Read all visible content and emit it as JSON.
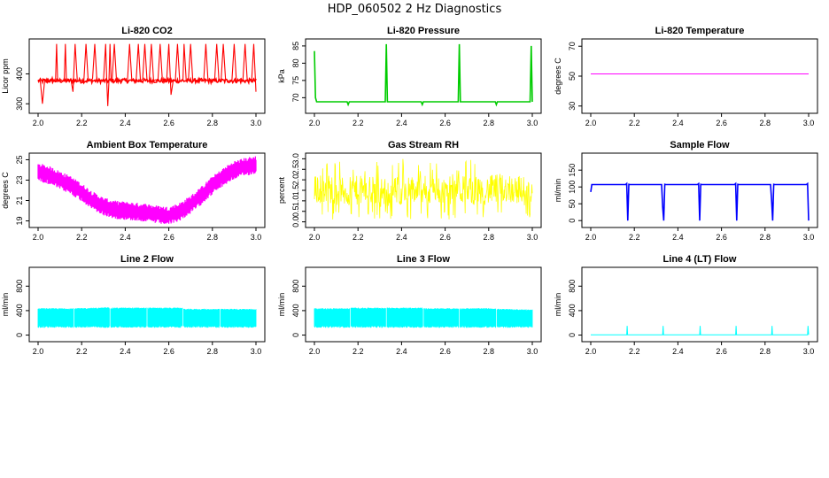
{
  "title": "HDP_060502  2 Hz Diagnostics",
  "chart_data": [
    {
      "type": "line",
      "title": "Li-820 CO2",
      "ylabel": "Licor ppm",
      "color": "#ff0000",
      "xlim": [
        2.0,
        3.0
      ],
      "ylim": [
        280,
        505
      ],
      "xticks": [
        "2.0",
        "2.2",
        "2.4",
        "2.6",
        "2.8",
        "3.0"
      ],
      "yticks": [
        "300",
        "400"
      ],
      "series": [
        {
          "x": [
            2.0,
            2.01,
            2.02,
            2.03,
            2.04,
            2.045,
            2.05,
            2.06,
            2.065,
            2.07,
            2.08,
            2.085,
            2.09,
            2.1,
            2.11,
            2.12,
            2.125,
            2.13,
            2.14,
            2.15,
            2.16,
            2.17,
            2.18,
            2.19,
            2.2,
            2.21,
            2.22,
            2.23,
            2.24,
            2.25,
            2.26,
            2.27,
            2.28,
            2.29,
            2.3,
            2.31,
            2.315,
            2.32,
            2.325,
            2.33,
            2.335,
            2.34,
            2.35,
            2.36,
            2.37,
            2.38,
            2.39,
            2.4,
            2.41,
            2.42,
            2.43,
            2.44,
            2.45,
            2.46,
            2.47,
            2.48,
            2.49,
            2.5,
            2.51,
            2.52,
            2.53,
            2.54,
            2.55,
            2.56,
            2.57,
            2.58,
            2.59,
            2.6,
            2.61,
            2.62,
            2.63,
            2.64,
            2.65,
            2.66,
            2.665,
            2.67,
            2.68,
            2.69,
            2.7,
            2.71,
            2.72,
            2.73,
            2.74,
            2.75,
            2.76,
            2.77,
            2.78,
            2.79,
            2.8,
            2.81,
            2.82,
            2.83,
            2.84,
            2.85,
            2.86,
            2.87,
            2.88,
            2.89,
            2.9,
            2.91,
            2.92,
            2.93,
            2.94,
            2.95,
            2.96,
            2.97,
            2.98,
            2.99,
            3.0
          ],
          "y": [
            380,
            376,
            300,
            378,
            372,
            384,
            378,
            376,
            388,
            374,
            378,
            500,
            374,
            382,
            378,
            376,
            500,
            378,
            376,
            384,
            340,
            500,
            376,
            378,
            380,
            378,
            500,
            376,
            378,
            384,
            500,
            378,
            376,
            380,
            376,
            500,
            378,
            292,
            376,
            500,
            378,
            382,
            500,
            376,
            378,
            380,
            384,
            378,
            376,
            500,
            380,
            376,
            378,
            500,
            376,
            384,
            500,
            378,
            376,
            500,
            378,
            380,
            376,
            500,
            384,
            378,
            376,
            500,
            330,
            376,
            378,
            500,
            376,
            378,
            382,
            500,
            376,
            378,
            500,
            376,
            380,
            378,
            384,
            376,
            378,
            500,
            376,
            378,
            380,
            376,
            500,
            378,
            376,
            500,
            384,
            376,
            378,
            380,
            500,
            376,
            378,
            384,
            376,
            500,
            376,
            378,
            376,
            500,
            340
          ]
        }
      ]
    },
    {
      "type": "line",
      "title": "Li-820 Pressure",
      "ylabel": "kPa",
      "color": "#00cc00",
      "xlim": [
        2.0,
        3.0
      ],
      "ylim": [
        66.5,
        86
      ],
      "xticks": [
        "2.0",
        "2.2",
        "2.4",
        "2.6",
        "2.8",
        "3.0"
      ],
      "yticks": [
        "70",
        "75",
        "80",
        "85"
      ],
      "series": [
        {
          "x": [
            2.0,
            2.005,
            2.01,
            2.05,
            2.1,
            2.15,
            2.155,
            2.16,
            2.2,
            2.25,
            2.3,
            2.325,
            2.33,
            2.335,
            2.4,
            2.45,
            2.49,
            2.495,
            2.5,
            2.55,
            2.6,
            2.66,
            2.665,
            2.67,
            2.7,
            2.75,
            2.8,
            2.83,
            2.835,
            2.84,
            2.9,
            2.95,
            2.99,
            2.995,
            3.0
          ],
          "y": [
            83.5,
            70,
            68.8,
            68.8,
            68.8,
            68.8,
            68.0,
            68.8,
            68.8,
            68.8,
            68.8,
            68.8,
            85.5,
            68.8,
            68.8,
            68.8,
            68.8,
            68.0,
            68.8,
            68.8,
            68.8,
            68.8,
            85.5,
            68.8,
            68.8,
            68.8,
            68.8,
            68.8,
            68.0,
            68.8,
            68.8,
            68.8,
            68.8,
            85.0,
            68.8
          ]
        }
      ]
    },
    {
      "type": "line",
      "title": "Li-820 Temperature",
      "ylabel": "degrees C",
      "color": "#ff00ff",
      "xlim": [
        2.0,
        3.0
      ],
      "ylim": [
        27.5,
        72.5
      ],
      "xticks": [
        "2.0",
        "2.2",
        "2.4",
        "2.6",
        "2.8",
        "3.0"
      ],
      "yticks": [
        "30",
        "50",
        "70"
      ],
      "series": [
        {
          "x": [
            2.0,
            3.0
          ],
          "y": [
            51.5,
            51.5
          ]
        }
      ]
    },
    {
      "type": "line",
      "title": "Ambient Box Temperature",
      "ylabel": "degrees C",
      "color": "#ff00ff",
      "xlim": [
        2.0,
        3.0
      ],
      "ylim": [
        18.7,
        25.3
      ],
      "xticks": [
        "2.0",
        "2.2",
        "2.4",
        "2.6",
        "2.8",
        "3.0"
      ],
      "yticks": [
        "19",
        "21",
        "23",
        "25"
      ],
      "band_width": 0.9,
      "series": [
        {
          "x": [
            2.0,
            2.05,
            2.1,
            2.15,
            2.2,
            2.25,
            2.3,
            2.35,
            2.4,
            2.45,
            2.5,
            2.55,
            2.6,
            2.65,
            2.7,
            2.75,
            2.8,
            2.85,
            2.9,
            2.95,
            3.0
          ],
          "y": [
            23.8,
            23.5,
            23.0,
            22.5,
            21.8,
            21.0,
            20.4,
            20.1,
            20.0,
            19.9,
            19.8,
            19.6,
            19.5,
            19.9,
            20.6,
            21.5,
            22.5,
            23.3,
            24.0,
            24.3,
            24.5
          ]
        }
      ]
    },
    {
      "type": "line",
      "title": "Gas Stream RH",
      "ylabel": "percent",
      "color": "#ffff00",
      "xlim": [
        2.0,
        3.0
      ],
      "ylim": [
        -0.1,
        3.1
      ],
      "xticks": [
        "2.0",
        "2.2",
        "2.4",
        "2.6",
        "2.8",
        "3.0"
      ],
      "yticks": [
        "0.0",
        "0.5",
        "1.0",
        "1.5",
        "2.0",
        "2.5",
        "3.0"
      ],
      "series": [
        {
          "x": [
            2.0,
            2.05,
            2.1,
            2.15,
            2.2,
            2.25,
            2.3,
            2.35,
            2.4,
            2.45,
            2.5,
            2.55,
            2.6,
            2.65,
            2.7,
            2.75,
            2.8,
            2.85,
            2.9,
            2.95,
            3.0
          ],
          "y": [
            1.5,
            1.6,
            1.5,
            1.4,
            1.5,
            1.5,
            1.4,
            1.4,
            1.5,
            1.5,
            1.5,
            1.5,
            1.5,
            1.6,
            1.5,
            1.5,
            1.5,
            1.6,
            1.6,
            1.5,
            1.4
          ]
        }
      ]
    },
    {
      "type": "line",
      "title": "Sample Flow",
      "ylabel": "ml/min",
      "color": "#0000ff",
      "xlim": [
        2.0,
        3.0
      ],
      "ylim": [
        -10,
        190
      ],
      "xticks": [
        "2.0",
        "2.2",
        "2.4",
        "2.6",
        "2.8",
        "3.0"
      ],
      "yticks": [
        "0",
        "50",
        "100",
        "150"
      ],
      "series": [
        {
          "x": [
            2.0,
            2.005,
            2.01,
            2.16,
            2.165,
            2.17,
            2.175,
            2.18,
            2.325,
            2.33,
            2.335,
            2.34,
            2.345,
            2.49,
            2.495,
            2.5,
            2.505,
            2.51,
            2.66,
            2.665,
            2.67,
            2.675,
            2.68,
            2.825,
            2.83,
            2.835,
            2.84,
            2.845,
            2.99,
            2.995,
            3.0
          ],
          "y": [
            85,
            107,
            107,
            107,
            110,
            0,
            108,
            107,
            107,
            40,
            0,
            108,
            107,
            107,
            110,
            0,
            108,
            107,
            107,
            110,
            0,
            108,
            107,
            107,
            60,
            0,
            108,
            107,
            107,
            110,
            0
          ]
        }
      ]
    },
    {
      "type": "line",
      "title": "Line 2 Flow",
      "ylabel": "ml/min",
      "color": "#00ffff",
      "xlim": [
        2.0,
        3.0
      ],
      "ylim": [
        -50,
        1050
      ],
      "xticks": [
        "2.0",
        "2.2",
        "2.4",
        "2.6",
        "2.8",
        "3.0"
      ],
      "yticks": [
        "0",
        "400",
        "800"
      ],
      "band_low": [
        140,
        140,
        140,
        140,
        140,
        140,
        140,
        140,
        140
      ],
      "series": [
        {
          "x": [
            2.0,
            2.165,
            2.17,
            2.33,
            2.335,
            2.5,
            2.505,
            2.665,
            2.67,
            2.835,
            2.84,
            3.0
          ],
          "y": [
            430,
            430,
            430,
            445,
            440,
            440,
            440,
            440,
            420,
            420,
            420,
            420
          ]
        }
      ]
    },
    {
      "type": "line",
      "title": "Line 3 Flow",
      "ylabel": "ml/min",
      "color": "#00ffff",
      "xlim": [
        2.0,
        3.0
      ],
      "ylim": [
        -50,
        1050
      ],
      "xticks": [
        "2.0",
        "2.2",
        "2.4",
        "2.6",
        "2.8",
        "3.0"
      ],
      "yticks": [
        "0",
        "400",
        "800"
      ],
      "series": [
        {
          "x": [
            2.0,
            2.165,
            2.17,
            2.33,
            2.335,
            2.5,
            2.505,
            2.665,
            2.67,
            2.835,
            2.84,
            3.0
          ],
          "y": [
            430,
            430,
            440,
            440,
            440,
            440,
            430,
            430,
            430,
            430,
            420,
            410
          ]
        }
      ]
    },
    {
      "type": "line",
      "title": "Line 4 (LT) Flow",
      "ylabel": "ml/min",
      "color": "#00ffff",
      "xlim": [
        2.0,
        3.0
      ],
      "ylim": [
        -50,
        1050
      ],
      "xticks": [
        "2.0",
        "2.2",
        "2.4",
        "2.6",
        "2.8",
        "3.0"
      ],
      "yticks": [
        "0",
        "400",
        "800"
      ],
      "series": [
        {
          "x": [
            2.0,
            2.165,
            2.167,
            2.169,
            2.33,
            2.332,
            2.334,
            2.5,
            2.502,
            2.504,
            2.665,
            2.667,
            2.669,
            2.83,
            2.832,
            2.834,
            2.995,
            2.997,
            3.0
          ],
          "y": [
            5,
            5,
            150,
            5,
            5,
            150,
            5,
            5,
            150,
            5,
            5,
            150,
            5,
            5,
            150,
            5,
            5,
            150,
            5
          ]
        }
      ]
    }
  ]
}
